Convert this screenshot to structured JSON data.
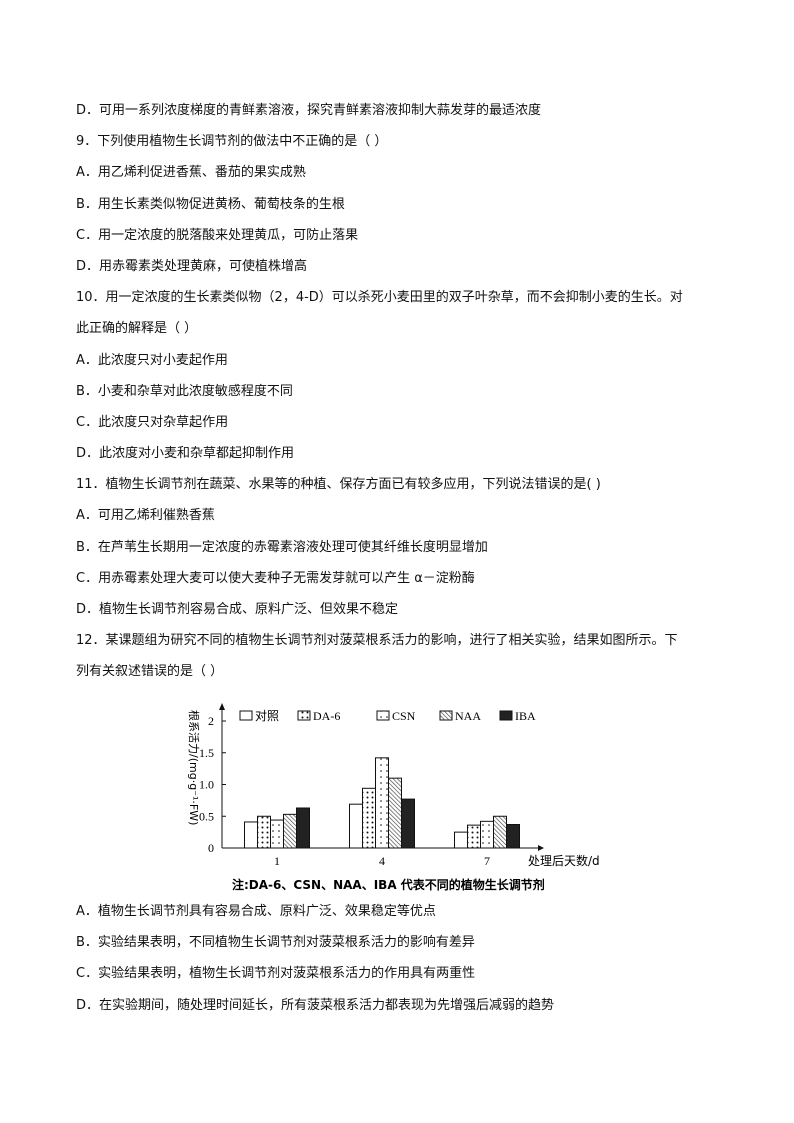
{
  "lines_before": [
    "D．可用一系列浓度梯度的青鲜素溶液，探究青鲜素溶液抑制大蒜发芽的最适浓度",
    "9．下列使用植物生长调节剂的做法中不正确的是（  ）",
    "A．用乙烯利促进香蕉、番茄的果实成熟",
    "B．用生长素类似物促进黄杨、葡萄枝条的生根",
    "C．用一定浓度的脱落酸来处理黄瓜，可防止落果",
    "D．用赤霉素类处理黄麻，可使植株增高",
    "10．用一定浓度的生长素类似物（2，4-D）可以杀死小麦田里的双子叶杂草，而不会抑制小麦的生长。对",
    "此正确的解释是（     ）",
    "A．此浓度只对小麦起作用",
    "B．小麦和杂草对此浓度敏感程度不同",
    "C．此浓度只对杂草起作用",
    "D．此浓度对小麦和杂草都起抑制作用",
    "11．植物生长调节剂在蔬菜、水果等的种植、保存方面已有较多应用，下列说法错误的是(   )",
    "A．可用乙烯利催熟香蕉",
    "B．在芦苇生长期用一定浓度的赤霉素溶液处理可使其纤维长度明显增加",
    "C．用赤霉素处理大麦可以使大麦种子无需发芽就可以产生 α－淀粉酶",
    "D．植物生长调节剂容易合成、原料广泛、但效果不稳定",
    "12．某课题组为研究不同的植物生长调节剂对菠菜根系活力的影响，进行了相关实验，结果如图所示。下",
    "列有关叙述错误的是（     ）"
  ],
  "lines_after": [
    "A．植物生长调节剂具有容易合成、原料广泛、效果稳定等优点",
    "B．实验结果表明，不同植物生长调节剂对菠菜根系活力的影响有差异",
    "C．实验结果表明，植物生长调节剂对菠菜根系活力的作用具有两重性",
    "D．在实验期间，随处理时间延长，所有菠菜根系活力都表现为先增强后减弱的趋势"
  ],
  "chart_data": {
    "type": "bar",
    "categories": [
      "1",
      "4",
      "7"
    ],
    "series": [
      {
        "name": "对照",
        "values": [
          0.41,
          0.69,
          0.25
        ]
      },
      {
        "name": "DA-6",
        "values": [
          0.5,
          0.94,
          0.36
        ]
      },
      {
        "name": "CSN",
        "values": [
          0.44,
          1.42,
          0.42
        ]
      },
      {
        "name": "NAA",
        "values": [
          0.53,
          1.1,
          0.5
        ]
      },
      {
        "name": "IBA",
        "values": [
          0.63,
          0.77,
          0.37
        ]
      }
    ],
    "ylabel": "根系活力/(mg·g⁻¹·FW)",
    "xlabel": "处理后天数/d",
    "yticks": [
      "0",
      "0.5",
      "1.0",
      "1.5",
      "2"
    ],
    "ylim": [
      0,
      2
    ],
    "legend": "top",
    "note": "注:DA-6、CSN、NAA、IBA 代表不同的植物生长调节剂"
  }
}
